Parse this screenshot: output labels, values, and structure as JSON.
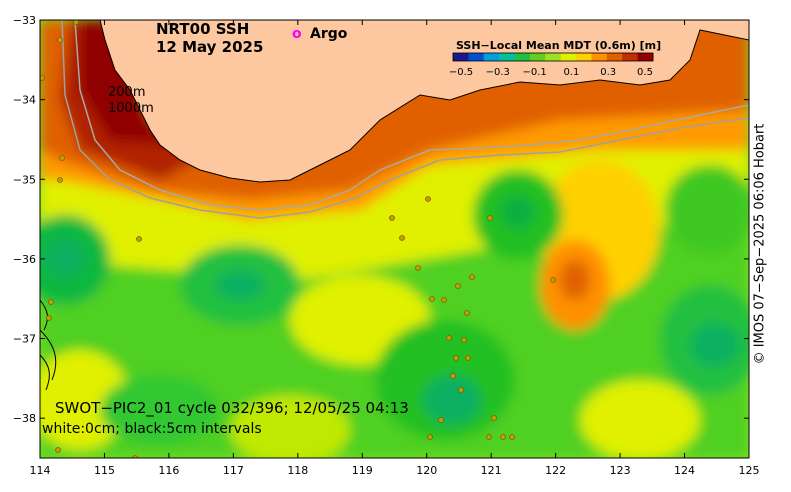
{
  "title": {
    "line1": "NRT00 SSH",
    "line2": "12 May 2025"
  },
  "argo_legend": {
    "symbol": "o",
    "label": "Argo",
    "color": "#ff00ff"
  },
  "colorbar": {
    "title": "SSH−Local Mean MDT (0.6m) [m]",
    "ticks": [
      "−0.5",
      "−0.3",
      "−0.1",
      "0.1",
      "0.3",
      "0.5"
    ],
    "range": [
      -0.5,
      0.5
    ],
    "colors": [
      "#1a1a8c",
      "#0050d0",
      "#00a0e0",
      "#00c0a0",
      "#20c040",
      "#60d020",
      "#a0e020",
      "#e0f000",
      "#ffd000",
      "#ff9000",
      "#e06000",
      "#c03000",
      "#900000"
    ]
  },
  "isobaths": {
    "shallow": "200m",
    "deep": "1000m"
  },
  "mission": {
    "line1": "SWOT−PIC2_01 cycle 032/396; 12/05/25 04:13",
    "line2": "white:0cm; black:5cm intervals"
  },
  "credit": "© IMOS 07−Sep−2025 06:06 Hobart",
  "axes": {
    "x_ticks": [
      "114",
      "115",
      "116",
      "117",
      "118",
      "119",
      "120",
      "121",
      "122",
      "123",
      "124",
      "125"
    ],
    "y_ticks": [
      "−33",
      "−34",
      "−35",
      "−36",
      "−37",
      "−38"
    ],
    "lon_range": [
      114,
      125
    ],
    "lat_range": [
      -33,
      -38.5
    ]
  },
  "colors": {
    "land": "#fdc8a0",
    "coast": "#000000",
    "isobath": "#a0a0a0"
  }
}
